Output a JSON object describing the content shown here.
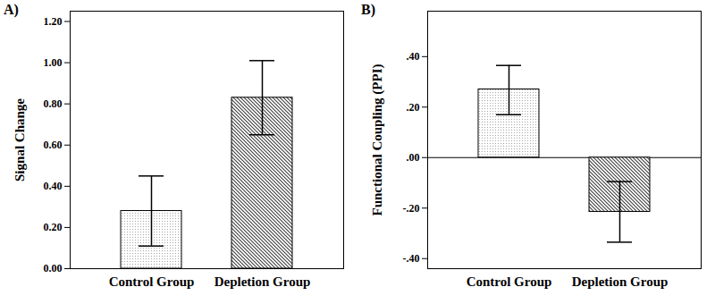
{
  "chart_data": [
    {
      "type": "bar",
      "title": "A)",
      "y_label": "Signal Change",
      "categories": [
        "Control Group",
        "Depletion Group"
      ],
      "values": [
        0.28,
        0.83
      ],
      "error_low": [
        0.11,
        0.65
      ],
      "error_high": [
        0.45,
        1.01
      ],
      "colors": [
        "#a6a6a6",
        "#404040"
      ],
      "ylim": [
        0,
        1.25
      ],
      "yticks": [
        {
          "value": 0,
          "label": "0.00"
        },
        {
          "value": 0.2,
          "label": "0.20"
        },
        {
          "value": 0.4,
          "label": "0.40"
        },
        {
          "value": 0.6,
          "label": "0.60"
        },
        {
          "value": 0.8,
          "label": "0.80"
        },
        {
          "value": 1.0,
          "label": "1.00"
        },
        {
          "value": 1.2,
          "label": "1.20"
        }
      ]
    },
    {
      "type": "bar",
      "title": "B)",
      "y_label": "Functional Coupling (PPI)",
      "categories": [
        "Control Group",
        "Depletion Group"
      ],
      "values": [
        0.27,
        -0.215
      ],
      "error_low": [
        0.17,
        -0.335
      ],
      "error_high": [
        0.365,
        -0.095
      ],
      "colors": [
        "#a6a6a6",
        "#404040"
      ],
      "ylim": [
        -0.44,
        0.58
      ],
      "yticks": [
        {
          "value": -0.4,
          "label": "-.40"
        },
        {
          "value": -0.2,
          "label": "-.20"
        },
        {
          "value": 0,
          "label": ".00"
        },
        {
          "value": 0.2,
          "label": ".20"
        },
        {
          "value": 0.4,
          "label": ".40"
        }
      ]
    }
  ]
}
